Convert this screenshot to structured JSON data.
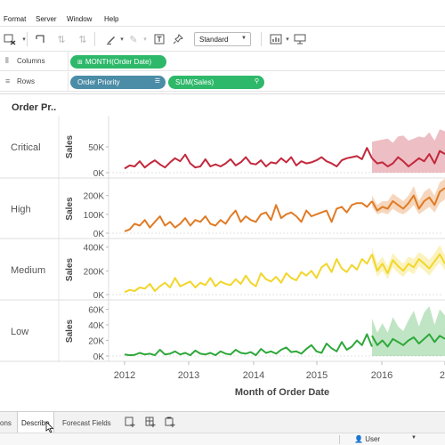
{
  "menu": {
    "items": [
      "Format",
      "Server",
      "Window",
      "Help"
    ]
  },
  "toolbar": {
    "mark_size_label": "Standard"
  },
  "shelves": {
    "columns": {
      "label": "Columns",
      "pills": [
        "MONTH(Order Date)"
      ]
    },
    "rows": {
      "label": "Rows",
      "pills": [
        "Order Priority",
        "SUM(Sales)"
      ]
    }
  },
  "sheet": {
    "title": "Order Pr.."
  },
  "tabs": [
    "ons",
    "Describe",
    "Forecast Fields"
  ],
  "user": {
    "label": "User"
  },
  "colors": {
    "critical": "#c2283c",
    "high": "#e07b25",
    "medium": "#f2d62c",
    "low": "#2ea83a",
    "pill_green": "#2eb86a",
    "pill_blue": "#4b8ca6"
  },
  "chart_data": {
    "type": "line",
    "xlabel": "Month of Order Date",
    "x_ticks": [
      "2012",
      "2013",
      "2014",
      "2015",
      "2016",
      "20"
    ],
    "forecast_start": "2016",
    "panels": [
      {
        "name": "Critical",
        "ylabel": "Sales",
        "y_ticks": [
          "50K",
          "0K"
        ],
        "ylim": [
          0,
          100000
        ],
        "values": [
          8000,
          14000,
          12000,
          22000,
          10000,
          18000,
          24000,
          16000,
          10000,
          20000,
          28000,
          22000,
          35000,
          18000,
          10000,
          12000,
          26000,
          12000,
          16000,
          12000,
          18000,
          26000,
          14000,
          20000,
          30000,
          18000,
          16000,
          24000,
          12000,
          20000,
          18000,
          28000,
          20000,
          30000,
          14000,
          22000,
          18000,
          20000,
          24000,
          30000,
          22000,
          18000,
          12000,
          24000,
          28000,
          30000,
          32000,
          26000,
          48000,
          28000
        ],
        "forecast": [
          28000,
          18000,
          20000,
          12000,
          18000,
          30000,
          22000,
          12000,
          20000,
          28000,
          22000,
          36000,
          18000,
          42000,
          36000
        ],
        "band_low": [
          0,
          0,
          0,
          0,
          0,
          0,
          0,
          0,
          0,
          0,
          0,
          0,
          0,
          0,
          0
        ],
        "band_high": [
          60000,
          62000,
          64000,
          66000,
          58000,
          70000,
          72000,
          62000,
          66000,
          70000,
          68000,
          78000,
          62000,
          84000,
          80000
        ]
      },
      {
        "name": "High",
        "ylabel": "Sales",
        "y_ticks": [
          "200K",
          "100K",
          "0K"
        ],
        "ylim": [
          0,
          260000
        ],
        "values": [
          10000,
          20000,
          50000,
          40000,
          70000,
          30000,
          60000,
          90000,
          40000,
          60000,
          30000,
          50000,
          80000,
          40000,
          70000,
          60000,
          90000,
          50000,
          40000,
          70000,
          50000,
          90000,
          120000,
          60000,
          90000,
          70000,
          60000,
          100000,
          110000,
          70000,
          150000,
          80000,
          100000,
          110000,
          90000,
          60000,
          120000,
          90000,
          100000,
          110000,
          120000,
          60000,
          130000,
          140000,
          110000,
          150000,
          160000,
          160000,
          140000,
          170000
        ],
        "forecast": [
          170000,
          120000,
          140000,
          130000,
          170000,
          150000,
          130000,
          160000,
          200000,
          130000,
          170000,
          190000,
          150000,
          220000,
          240000
        ],
        "band_low": [
          140000,
          100000,
          110000,
          100000,
          130000,
          110000,
          100000,
          120000,
          150000,
          100000,
          120000,
          140000,
          110000,
          160000,
          180000
        ],
        "band_high": [
          200000,
          150000,
          170000,
          170000,
          210000,
          190000,
          170000,
          200000,
          250000,
          170000,
          220000,
          240000,
          200000,
          270000,
          290000
        ]
      },
      {
        "name": "Medium",
        "ylabel": "Sales",
        "y_ticks": [
          "400K",
          "200K",
          "0K"
        ],
        "ylim": [
          0,
          420000
        ],
        "values": [
          20000,
          40000,
          30000,
          60000,
          50000,
          90000,
          30000,
          70000,
          100000,
          60000,
          140000,
          70000,
          90000,
          110000,
          60000,
          100000,
          80000,
          140000,
          70000,
          110000,
          90000,
          80000,
          130000,
          90000,
          160000,
          100000,
          70000,
          180000,
          130000,
          110000,
          150000,
          100000,
          180000,
          140000,
          120000,
          190000,
          160000,
          200000,
          140000,
          230000,
          260000,
          190000,
          300000,
          220000,
          190000,
          250000,
          210000,
          300000,
          260000,
          340000
        ],
        "forecast": [
          340000,
          200000,
          260000,
          180000,
          290000,
          240000,
          200000,
          260000,
          230000,
          300000,
          260000,
          220000,
          280000,
          340000,
          260000
        ],
        "band_low": [
          280000,
          150000,
          200000,
          130000,
          230000,
          180000,
          150000,
          200000,
          170000,
          240000,
          200000,
          160000,
          220000,
          270000,
          200000
        ],
        "band_high": [
          400000,
          260000,
          320000,
          240000,
          350000,
          300000,
          260000,
          320000,
          300000,
          360000,
          330000,
          290000,
          350000,
          420000,
          330000
        ]
      },
      {
        "name": "Low",
        "ylabel": "Sales",
        "y_ticks": [
          "60K",
          "40K",
          "20K",
          "0K"
        ],
        "ylim": [
          0,
          64000
        ],
        "values": [
          2000,
          1000,
          1500,
          4000,
          2000,
          3000,
          1000,
          8000,
          2000,
          3000,
          6000,
          2000,
          4000,
          1000,
          7000,
          3000,
          2000,
          4000,
          1000,
          6000,
          3000,
          2000,
          8000,
          4000,
          3000,
          5000,
          1000,
          9000,
          4000,
          6000,
          3000,
          8000,
          11000,
          5000,
          6000,
          3000,
          9000,
          14000,
          6000,
          4000,
          16000,
          10000,
          6000,
          18000,
          8000,
          12000,
          20000,
          14000,
          28000,
          12000
        ],
        "forecast": [
          26000,
          14000,
          20000,
          12000,
          22000,
          18000,
          14000,
          20000,
          24000,
          16000,
          22000,
          28000,
          18000,
          26000,
          22000
        ],
        "band_low": [
          0,
          0,
          0,
          0,
          0,
          0,
          0,
          0,
          0,
          0,
          0,
          0,
          0,
          0,
          0
        ],
        "band_high": [
          48000,
          30000,
          42000,
          30000,
          50000,
          38000,
          32000,
          46000,
          58000,
          38000,
          56000,
          64000,
          40000,
          60000,
          52000
        ]
      }
    ]
  }
}
